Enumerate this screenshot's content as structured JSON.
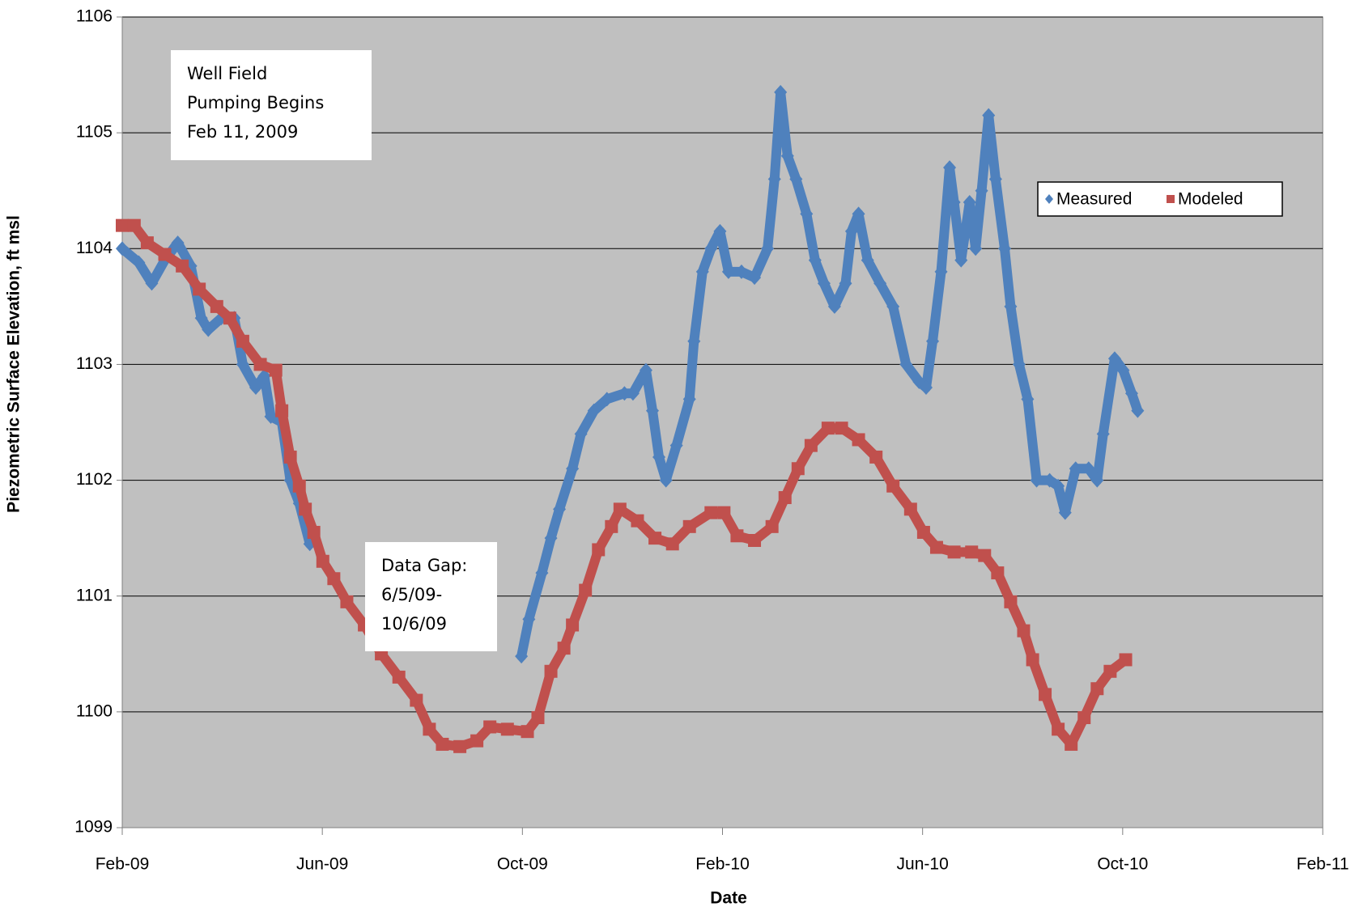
{
  "chart_data": {
    "type": "scatter",
    "xlabel": "Date",
    "ylabel": "Piezometric Surface Elevation, ft msl",
    "xlim": [
      0,
      24
    ],
    "xticks": [
      {
        "value": 0,
        "label": "Feb-09"
      },
      {
        "value": 4,
        "label": "Jun-09"
      },
      {
        "value": 8,
        "label": "Oct-09"
      },
      {
        "value": 12,
        "label": "Feb-10"
      },
      {
        "value": 16,
        "label": "Jun-10"
      },
      {
        "value": 20,
        "label": "Oct-10"
      },
      {
        "value": 24,
        "label": "Feb-11"
      }
    ],
    "ylim": [
      1099,
      1106
    ],
    "yticks": [
      1099,
      1100,
      1101,
      1102,
      1103,
      1104,
      1105,
      1106
    ],
    "grid": true,
    "legend": "upper right",
    "annotations": [
      {
        "lines": [
          "Well Field",
          "Pumping Begins",
          "Feb 11, 2009"
        ]
      },
      {
        "lines": [
          "Data Gap:",
          "6/5/09-",
          "10/6/09"
        ]
      }
    ],
    "series": [
      {
        "name": "Measured",
        "color": "#4f81bd",
        "marker": "diamond",
        "x": [
          0,
          0.33,
          0.59,
          0.85,
          1.11,
          1.37,
          1.58,
          1.72,
          1.98,
          2.24,
          2.41,
          2.67,
          2.84,
          2.97,
          3.19,
          3.36,
          3.54,
          3.75,
          5.9,
          7.98,
          8.13,
          8.39,
          8.57,
          8.74,
          9.0,
          9.17,
          9.43,
          9.69,
          10.04,
          10.21,
          10.47,
          10.6,
          10.73,
          10.87,
          11.08,
          11.34,
          11.43,
          11.6,
          11.77,
          11.95,
          12.12,
          12.38,
          12.64,
          12.9,
          13.04,
          13.16,
          13.3,
          13.47,
          13.68,
          13.85,
          14.03,
          14.24,
          14.46,
          14.58,
          14.72,
          14.9,
          15.15,
          15.41,
          15.67,
          15.93,
          16.07,
          16.2,
          16.37,
          16.54,
          16.63,
          16.77,
          16.94,
          17.06,
          17.18,
          17.32,
          17.46,
          17.64,
          17.76,
          17.93,
          18.1,
          18.28,
          18.54,
          18.71,
          18.85,
          19.06,
          19.32,
          19.49,
          19.61,
          19.84,
          20.01,
          20.18,
          20.3
        ],
        "values": [
          1104.0,
          1103.88,
          1103.7,
          1103.9,
          1104.05,
          1103.85,
          1103.4,
          1103.3,
          1103.4,
          1103.4,
          1103.0,
          1102.8,
          1102.9,
          1102.55,
          1102.5,
          1102.0,
          1101.8,
          1101.45,
          null,
          1100.48,
          1100.8,
          1101.2,
          1101.5,
          1101.75,
          1102.1,
          1102.4,
          1102.6,
          1102.7,
          1102.75,
          1102.75,
          1102.95,
          1102.6,
          1102.2,
          1102.0,
          1102.3,
          1102.7,
          1103.2,
          1103.8,
          1104.0,
          1104.15,
          1103.8,
          1103.8,
          1103.75,
          1104.0,
          1104.6,
          1105.35,
          1104.8,
          1104.6,
          1104.3,
          1103.9,
          1103.7,
          1103.5,
          1103.7,
          1104.15,
          1104.3,
          1103.9,
          1103.7,
          1103.5,
          1103.0,
          1102.85,
          1102.8,
          1103.2,
          1103.8,
          1104.7,
          1104.4,
          1103.9,
          1104.4,
          1104.0,
          1104.5,
          1105.15,
          1104.6,
          1104.0,
          1103.5,
          1103.0,
          1102.7,
          1102.0,
          1102.0,
          1101.95,
          1101.72,
          1102.1,
          1102.1,
          1102.0,
          1102.4,
          1103.05,
          1102.95,
          1102.75,
          1102.6
        ]
      },
      {
        "name": "Modeled",
        "color": "#c0504d",
        "marker": "square",
        "x": [
          0,
          0.24,
          0.5,
          0.85,
          1.2,
          1.54,
          1.89,
          2.15,
          2.41,
          2.76,
          3.07,
          3.19,
          3.36,
          3.54,
          3.66,
          3.83,
          4.01,
          4.23,
          4.49,
          4.84,
          5.18,
          5.53,
          5.88,
          6.14,
          6.4,
          6.75,
          7.09,
          7.35,
          7.7,
          8.1,
          8.31,
          8.57,
          8.83,
          9.0,
          9.26,
          9.52,
          9.78,
          9.95,
          10.3,
          10.65,
          11.0,
          11.34,
          11.77,
          12.03,
          12.29,
          12.64,
          12.99,
          13.25,
          13.51,
          13.77,
          14.11,
          14.38,
          14.72,
          15.07,
          15.41,
          15.76,
          16.02,
          16.28,
          16.63,
          16.98,
          17.24,
          17.5,
          17.76,
          18.02,
          18.2,
          18.45,
          18.71,
          18.97,
          19.23,
          19.49,
          19.75,
          20.06
        ],
        "values": [
          1104.2,
          1104.2,
          1104.05,
          1103.95,
          1103.85,
          1103.65,
          1103.5,
          1103.4,
          1103.2,
          1103.0,
          1102.95,
          1102.6,
          1102.2,
          1101.95,
          1101.75,
          1101.55,
          1101.3,
          1101.15,
          1100.95,
          1100.75,
          1100.5,
          1100.3,
          1100.1,
          1099.85,
          1099.72,
          1099.7,
          1099.75,
          1099.87,
          1099.85,
          1099.83,
          1099.95,
          1100.35,
          1100.55,
          1100.75,
          1101.05,
          1101.4,
          1101.6,
          1101.75,
          1101.65,
          1101.5,
          1101.45,
          1101.6,
          1101.72,
          1101.72,
          1101.52,
          1101.48,
          1101.6,
          1101.85,
          1102.1,
          1102.3,
          1102.45,
          1102.45,
          1102.35,
          1102.2,
          1101.95,
          1101.75,
          1101.55,
          1101.42,
          1101.38,
          1101.38,
          1101.35,
          1101.2,
          1100.95,
          1100.7,
          1100.45,
          1100.15,
          1099.85,
          1099.72,
          1099.95,
          1100.2,
          1100.35,
          1100.45
        ]
      }
    ]
  }
}
